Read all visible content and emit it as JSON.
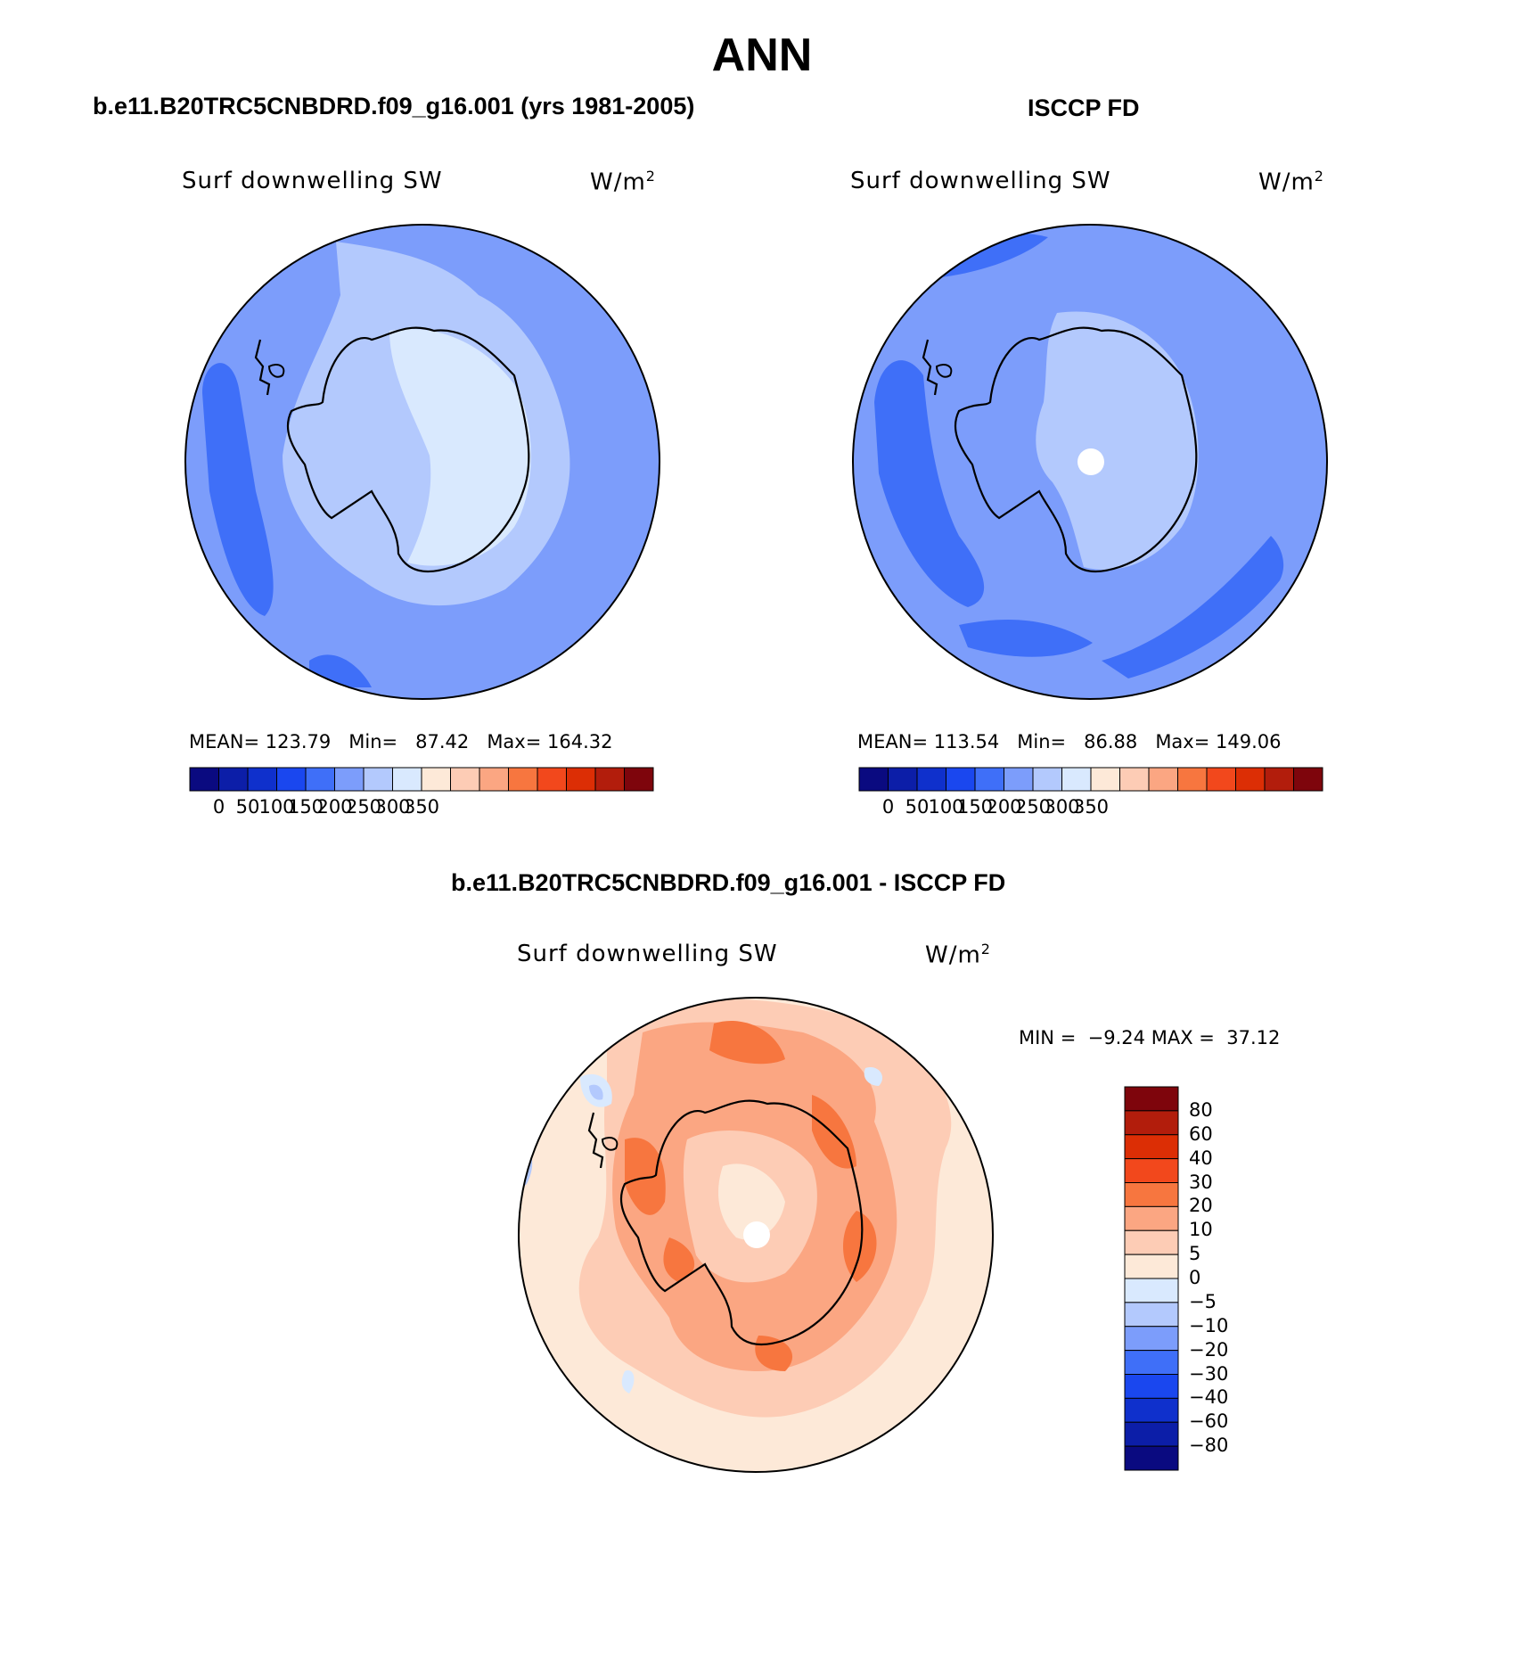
{
  "figure": {
    "title": "ANN",
    "left_case": "b.e11.B20TRC5CNBDRD.f09_g16.001 (yrs 1981-2005)",
    "right_case": "ISCCP FD",
    "diff_case": "b.e11.B20TRC5CNBDRD.f09_g16.001 - ISCCP FD"
  },
  "panels": {
    "model": {
      "variable": "Surf downwelling SW",
      "units": "W/m",
      "units_sup": "2",
      "mean_label": "MEAN=",
      "mean": "123.79",
      "min_label": "Min=",
      "min": "87.42",
      "max_label": "Max=",
      "max": "164.32"
    },
    "obs": {
      "variable": "Surf downwelling SW",
      "units": "W/m",
      "units_sup": "2",
      "mean_label": "MEAN=",
      "mean": "113.54",
      "min_label": "Min=",
      "min": "86.88",
      "max_label": "Max=",
      "max": "149.06"
    },
    "diff": {
      "variable": "Surf downwelling SW",
      "units": "W/m",
      "units_sup": "2",
      "min_label": "MIN =",
      "min": "−9.24",
      "max_label": "MAX =",
      "max": "37.12"
    }
  },
  "colorbar_horizontal": {
    "colors": [
      "#0a0a80",
      "#0c1ea8",
      "#0f30cc",
      "#1a47ef",
      "#3f6ff8",
      "#7c9dfb",
      "#b3c9fd",
      "#d9e9fe",
      "#fde9d8",
      "#fdccb5",
      "#fba682",
      "#f7763f",
      "#f2481c",
      "#dc2e05",
      "#b21d0c",
      "#7e050c"
    ],
    "labels": [
      "0",
      "50",
      "100",
      "150",
      "200",
      "250",
      "300",
      "350"
    ]
  },
  "colorbar_vertical": {
    "colors_top_to_bottom": [
      "#7e050c",
      "#b21d0c",
      "#dc2e05",
      "#f2481c",
      "#f7763f",
      "#fba682",
      "#fdccb5",
      "#fde9d8",
      "#d9e9fe",
      "#b3c9fd",
      "#7c9dfb",
      "#3f6ff8",
      "#1a47ef",
      "#0f30cc",
      "#0c1ea8",
      "#0a0a80"
    ],
    "labels_top_to_bottom": [
      "80",
      "60",
      "40",
      "30",
      "20",
      "10",
      "5",
      "0",
      "−5",
      "−10",
      "−20",
      "−30",
      "−40",
      "−60",
      "−80"
    ]
  },
  "map_colors": {
    "ocean_model": "#7c9dfb",
    "ocean_obs": "#7c9dfb",
    "diff_bg": "#fde9d8",
    "coast": "#000000"
  }
}
